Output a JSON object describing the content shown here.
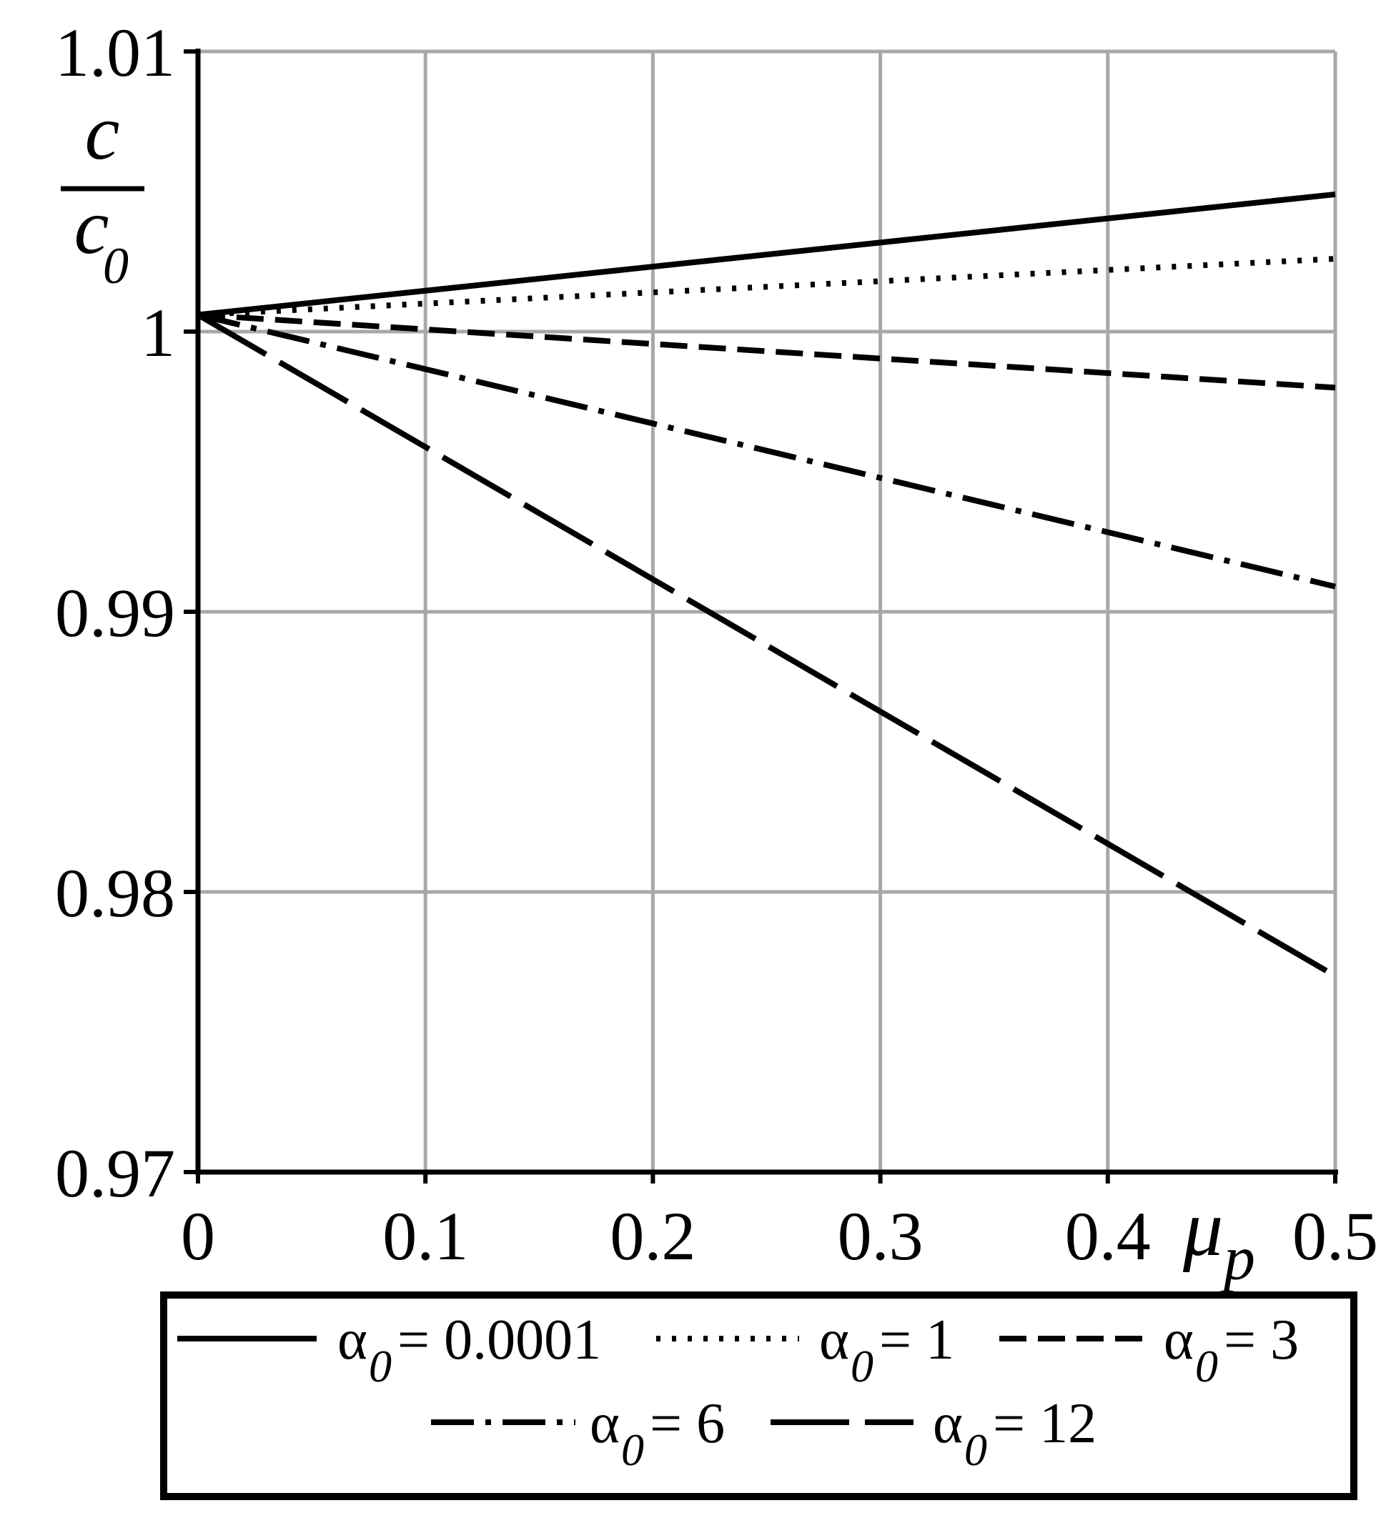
{
  "chart_data": {
    "type": "line",
    "xlabel": "μ",
    "xlabel_sub": "p",
    "ylabel_num": "c",
    "ylabel_den": "c",
    "ylabel_den_sub": "0",
    "xlim": [
      0,
      0.5
    ],
    "ylim": [
      0.97,
      1.01
    ],
    "x_ticks": [
      "0",
      "0.1",
      "0.2",
      "0.3",
      "0.4",
      "0.5"
    ],
    "y_ticks": [
      "0.97",
      "0.98",
      "0.99",
      "1",
      "1.01"
    ],
    "grid": true,
    "legend_position": "bottom",
    "series": [
      {
        "name": "α0 = 0.0001",
        "symbol": "α",
        "sub": "0",
        "value": " = 0.0001",
        "style": "solid",
        "x": [
          0,
          0.5
        ],
        "y": [
          1.0006,
          1.0049
        ]
      },
      {
        "name": "α0 = 1",
        "symbol": "α",
        "sub": "0",
        "value": " = 1",
        "style": "dotted",
        "x": [
          0,
          0.5
        ],
        "y": [
          1.0006,
          1.0026
        ]
      },
      {
        "name": "α0 = 3",
        "symbol": "α",
        "sub": "0",
        "value": " = 3",
        "style": "dashed",
        "x": [
          0,
          0.5
        ],
        "y": [
          1.0006,
          0.998
        ]
      },
      {
        "name": "α0 = 6",
        "symbol": "α",
        "sub": "0",
        "value": " = 6",
        "style": "dashdot",
        "x": [
          0,
          0.5
        ],
        "y": [
          1.0006,
          0.9909
        ]
      },
      {
        "name": "α0 = 12",
        "symbol": "α",
        "sub": "0",
        "value": " = 12",
        "style": "longdash",
        "x": [
          0,
          0.5
        ],
        "y": [
          1.0006,
          0.977
        ]
      }
    ]
  }
}
